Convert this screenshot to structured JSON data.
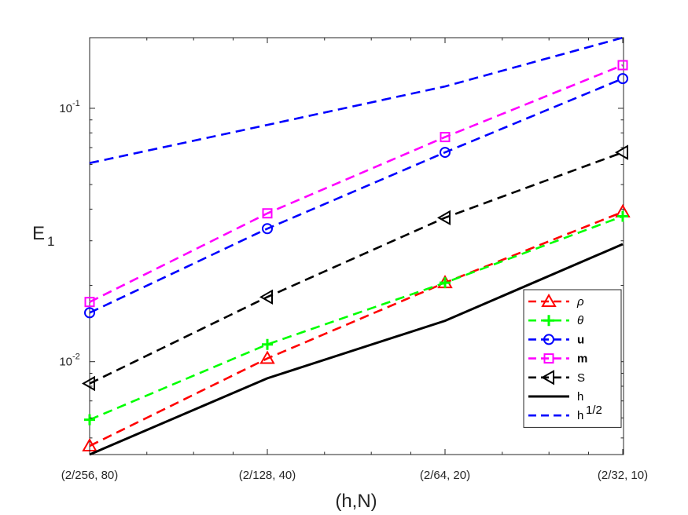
{
  "chart_data": {
    "type": "line",
    "title": "",
    "xlabel": "(h,N)",
    "ylabel": "E",
    "ylabel_subscript": "1",
    "y_scale": "log",
    "x_scale": "log",
    "categories": [
      "(2/256, 80)",
      "(2/128, 40)",
      "(2/64, 20)",
      "(2/32, 10)"
    ],
    "x": [
      0.0078125,
      0.015625,
      0.03125,
      0.0625
    ],
    "ylim": [
      0.0043,
      0.19
    ],
    "y_ticks": [
      0.01,
      0.1
    ],
    "y_tick_labels": [
      {
        "base": "10",
        "exp": "-2"
      },
      {
        "base": "10",
        "exp": "-1"
      }
    ],
    "grid": false,
    "legend_position": "bottom-right",
    "series": [
      {
        "name": "ρ",
        "label_style": "italic",
        "color": "#FF0000",
        "linestyle": "dashed",
        "marker": "triangle-up",
        "values": [
          0.00465,
          0.0103,
          0.0205,
          0.039
        ]
      },
      {
        "name": "θ",
        "label_style": "italic",
        "color": "#00FF00",
        "linestyle": "dashed",
        "marker": "plus",
        "values": [
          0.0059,
          0.0117,
          0.0205,
          0.0375
        ]
      },
      {
        "name": "u",
        "label_style": "bold",
        "color": "#0000FF",
        "linestyle": "dashed",
        "marker": "circle",
        "values": [
          0.0156,
          0.0335,
          0.067,
          0.131
        ]
      },
      {
        "name": "m",
        "label_style": "bold",
        "color": "#FF00FF",
        "linestyle": "dashed",
        "marker": "square",
        "values": [
          0.0172,
          0.0385,
          0.077,
          0.148
        ]
      },
      {
        "name": "S",
        "label_style": "normal",
        "color": "#000000",
        "linestyle": "dashed",
        "marker": "triangle-left",
        "values": [
          0.0082,
          0.018,
          0.037,
          0.067
        ]
      },
      {
        "name": "h",
        "label_style": "normal",
        "color": "#000000",
        "linestyle": "solid",
        "marker": "none",
        "linewidth": "thick",
        "values": [
          0.0043,
          0.0086,
          0.0145,
          0.0291
        ]
      },
      {
        "name": "h",
        "name_superscript": "1/2",
        "label_style": "normal",
        "color": "#0000FF",
        "linestyle": "dashed",
        "marker": "none",
        "values": [
          0.0608,
          0.086,
          0.122,
          0.19
        ]
      }
    ]
  }
}
